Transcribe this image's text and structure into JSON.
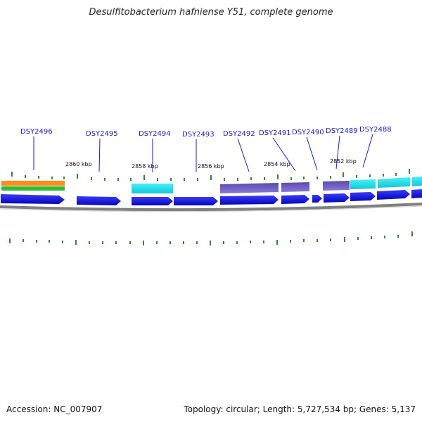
{
  "title": "Desulfitobacterium hafniense Y51, complete genome",
  "accession_text": "Accession: NC_007907",
  "summary_text": "Topology: circular; Length: 5,727,534 bp; Genes: 5,137",
  "colors": {
    "gene_label": "#1a1acc",
    "tick": "#2e8b2e",
    "backbone": "#808080",
    "cds_blue": "#1010e0",
    "feature_orange": "#ff8c1a",
    "feature_green": "#33bb33",
    "feature_cyan": "#22e5ee",
    "feature_purple": "#7060cc"
  },
  "kbp_labels": [
    "2860 kbp",
    "2858 kbp",
    "2856 kbp",
    "2854 kbp",
    "2852 kbp"
  ],
  "genes": [
    {
      "name": "DSY2496",
      "lane_color": "#ff8c1a"
    },
    {
      "name": "DSY2495",
      "lane_color": "#1010e0"
    },
    {
      "name": "DSY2494",
      "lane_color": "#22e5ee"
    },
    {
      "name": "DSY2493",
      "lane_color": "#1010e0"
    },
    {
      "name": "DSY2492",
      "lane_color": "#7060cc"
    },
    {
      "name": "DSY2491",
      "lane_color": "#7060cc"
    },
    {
      "name": "DSY2490",
      "lane_color": "#1010e0"
    },
    {
      "name": "DSY2489",
      "lane_color": "#7060cc"
    },
    {
      "name": "DSY2488",
      "lane_color": "#22e5ee"
    }
  ]
}
